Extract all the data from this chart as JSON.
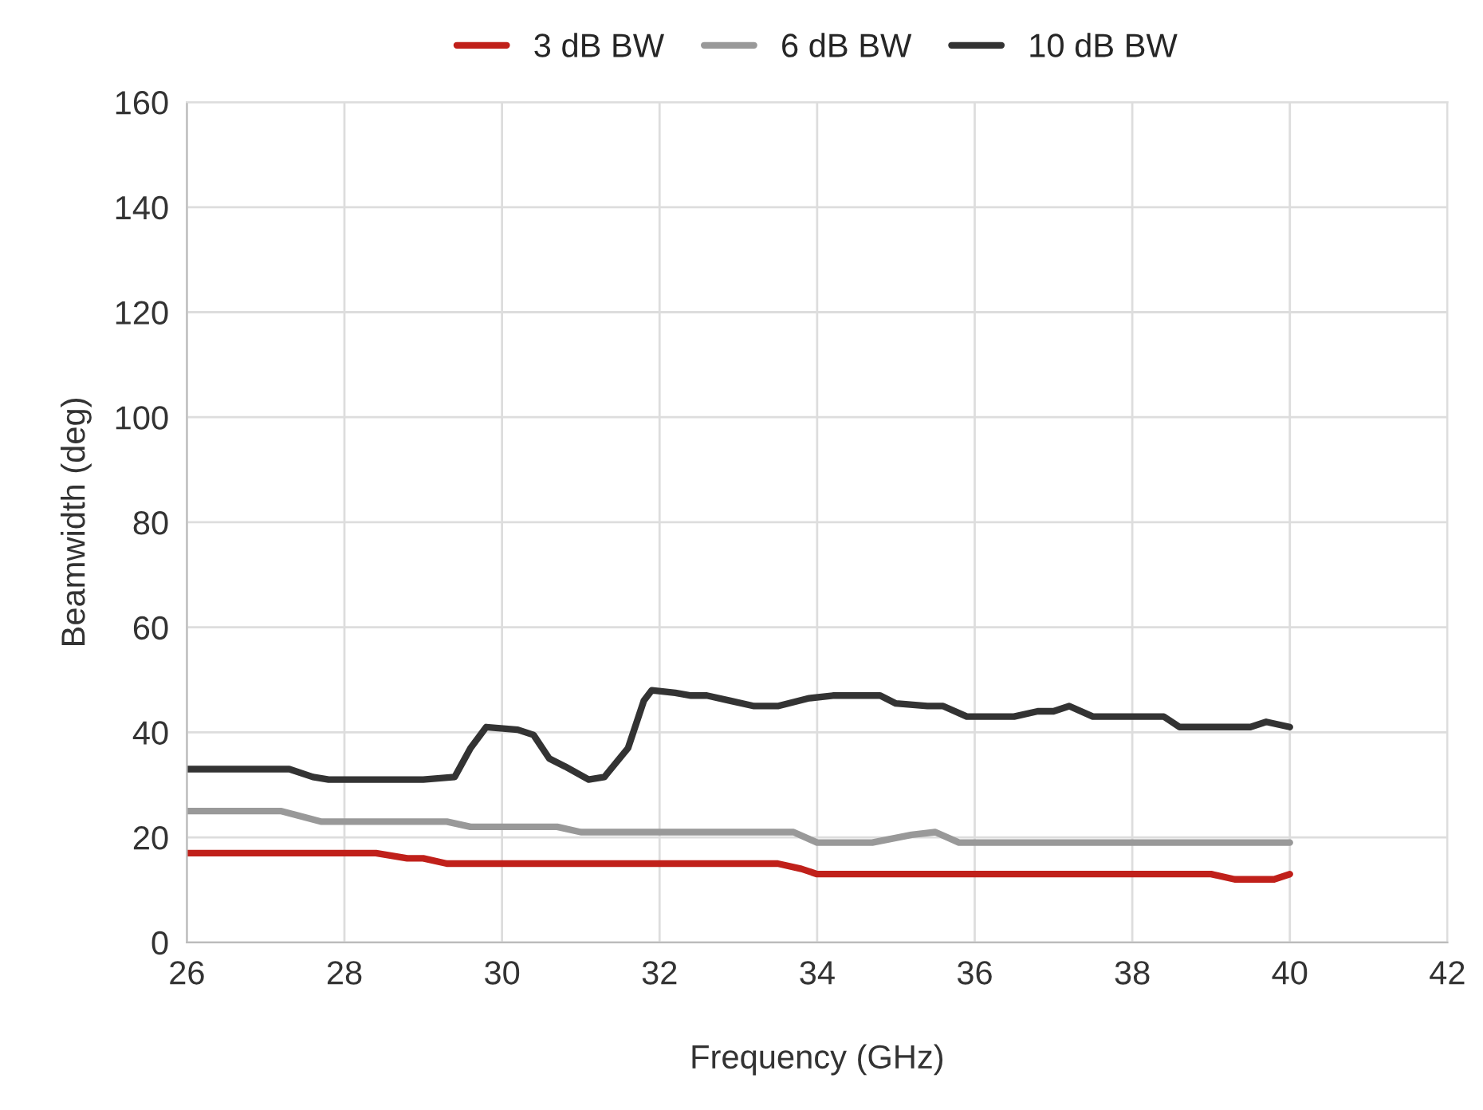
{
  "chart_data": {
    "type": "line",
    "xlabel": "Frequency (GHz)",
    "ylabel": "Beamwidth (deg)",
    "xlim": [
      26,
      42
    ],
    "xticks": [
      26,
      28,
      30,
      32,
      34,
      36,
      38,
      40,
      42
    ],
    "ylim": [
      0,
      160
    ],
    "yticks": [
      0,
      20,
      40,
      60,
      80,
      100,
      120,
      140,
      160
    ],
    "grid": true,
    "legend": "top",
    "marker": "none",
    "line_style": "solid",
    "series": [
      {
        "name": "3 dB BW",
        "color": "#c0201a",
        "x": [
          26,
          28.4,
          28.8,
          29.0,
          29.3,
          33.5,
          33.8,
          34.0,
          39.0,
          39.3,
          39.8,
          40
        ],
        "values": [
          17,
          17,
          16,
          16,
          15,
          15,
          14,
          13,
          13,
          12,
          12,
          13
        ]
      },
      {
        "name": "6 dB BW",
        "color": "#999999",
        "x": [
          26,
          27.2,
          27.7,
          28.0,
          29.3,
          29.6,
          30.0,
          30.7,
          31.0,
          33.7,
          34.0,
          34.7,
          35.2,
          35.5,
          35.8,
          40
        ],
        "values": [
          25,
          25,
          23,
          23,
          23,
          22,
          22,
          22,
          21,
          21,
          19,
          19,
          20.5,
          21,
          19,
          19
        ]
      },
      {
        "name": "10 dB BW",
        "color": "#333333",
        "x": [
          26,
          27.3,
          27.6,
          27.8,
          29.0,
          29.4,
          29.6,
          29.8,
          30.2,
          30.4,
          30.6,
          30.8,
          31.1,
          31.3,
          31.6,
          31.8,
          31.9,
          32.2,
          32.4,
          32.6,
          32.9,
          33.2,
          33.5,
          33.9,
          34.2,
          34.8,
          35.0,
          35.4,
          35.6,
          35.9,
          36.5,
          36.8,
          37.0,
          37.2,
          37.5,
          38.0,
          38.4,
          38.6,
          39.0,
          39.5,
          39.7,
          40
        ],
        "values": [
          33,
          33,
          31.5,
          31,
          31,
          31.5,
          37,
          41,
          40.5,
          39.5,
          35,
          33.5,
          31,
          31.5,
          37,
          46,
          48,
          47.5,
          47,
          47,
          46,
          45,
          45,
          46.5,
          47,
          47,
          45.5,
          45,
          45,
          43,
          43,
          44,
          44,
          45,
          43,
          43,
          43,
          41,
          41,
          41,
          42,
          41
        ]
      }
    ]
  }
}
